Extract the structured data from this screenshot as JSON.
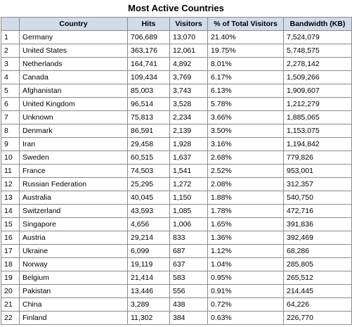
{
  "title": "Most Active Countries",
  "columns": {
    "rank": "",
    "country": "Country",
    "hits": "Hits",
    "visitors": "Visitors",
    "pct": "% of Total Visitors",
    "bandwidth": "Bandwidth (KB)"
  },
  "rows": [
    {
      "rank": "1",
      "country": "Germany",
      "hits": "706,689",
      "visitors": "13,070",
      "pct": "21.40%",
      "bandwidth": "7,524,079"
    },
    {
      "rank": "2",
      "country": "United States",
      "hits": "363,176",
      "visitors": "12,061",
      "pct": "19.75%",
      "bandwidth": "5,748,575"
    },
    {
      "rank": "3",
      "country": "Netherlands",
      "hits": "164,741",
      "visitors": "4,892",
      "pct": "8.01%",
      "bandwidth": "2,278,142"
    },
    {
      "rank": "4",
      "country": "Canada",
      "hits": "109,434",
      "visitors": "3,769",
      "pct": "6.17%",
      "bandwidth": "1,509,266"
    },
    {
      "rank": "5",
      "country": "Afghanistan",
      "hits": "85,003",
      "visitors": "3,743",
      "pct": "6.13%",
      "bandwidth": "1,909,607"
    },
    {
      "rank": "6",
      "country": "United Kingdom",
      "hits": "96,514",
      "visitors": "3,528",
      "pct": "5.78%",
      "bandwidth": "1,212,279"
    },
    {
      "rank": "7",
      "country": "Unknown",
      "hits": "75,813",
      "visitors": "2,234",
      "pct": "3.66%",
      "bandwidth": "1,885,065"
    },
    {
      "rank": "8",
      "country": "Denmark",
      "hits": "86,591",
      "visitors": "2,139",
      "pct": "3.50%",
      "bandwidth": "1,153,075"
    },
    {
      "rank": "9",
      "country": "Iran",
      "hits": "29,458",
      "visitors": "1,928",
      "pct": "3.16%",
      "bandwidth": "1,194,842"
    },
    {
      "rank": "10",
      "country": "Sweden",
      "hits": "60,515",
      "visitors": "1,637",
      "pct": "2.68%",
      "bandwidth": "779,826"
    },
    {
      "rank": "11",
      "country": "France",
      "hits": "74,503",
      "visitors": "1,541",
      "pct": "2.52%",
      "bandwidth": "953,001"
    },
    {
      "rank": "12",
      "country": "Russian Federation",
      "hits": "25,295",
      "visitors": "1,272",
      "pct": "2.08%",
      "bandwidth": "312,357"
    },
    {
      "rank": "13",
      "country": "Australia",
      "hits": "40,045",
      "visitors": "1,150",
      "pct": "1.88%",
      "bandwidth": "540,750"
    },
    {
      "rank": "14",
      "country": "Switzerland",
      "hits": "43,593",
      "visitors": "1,085",
      "pct": "1.78%",
      "bandwidth": "472,716"
    },
    {
      "rank": "15",
      "country": "Singapore",
      "hits": "4,656",
      "visitors": "1,006",
      "pct": "1.65%",
      "bandwidth": "391,836"
    },
    {
      "rank": "16",
      "country": "Austria",
      "hits": "29,214",
      "visitors": "833",
      "pct": "1.36%",
      "bandwidth": "392,469"
    },
    {
      "rank": "17",
      "country": "Ukraine",
      "hits": "6,099",
      "visitors": "687",
      "pct": "1.12%",
      "bandwidth": "68,286"
    },
    {
      "rank": "18",
      "country": "Norway",
      "hits": "19,119",
      "visitors": "637",
      "pct": "1.04%",
      "bandwidth": "285,805"
    },
    {
      "rank": "19",
      "country": "Belgium",
      "hits": "21,414",
      "visitors": "583",
      "pct": "0.95%",
      "bandwidth": "265,512"
    },
    {
      "rank": "20",
      "country": "Pakistan",
      "hits": "13,446",
      "visitors": "556",
      "pct": "0.91%",
      "bandwidth": "214,445"
    },
    {
      "rank": "21",
      "country": "China",
      "hits": "3,289",
      "visitors": "438",
      "pct": "0.72%",
      "bandwidth": "64,226"
    },
    {
      "rank": "22",
      "country": "Finland",
      "hits": "11,302",
      "visitors": "384",
      "pct": "0.63%",
      "bandwidth": "226,770"
    }
  ],
  "colors": {
    "header_background": "#d0dcea",
    "grid_line": "#8a8a8a"
  }
}
